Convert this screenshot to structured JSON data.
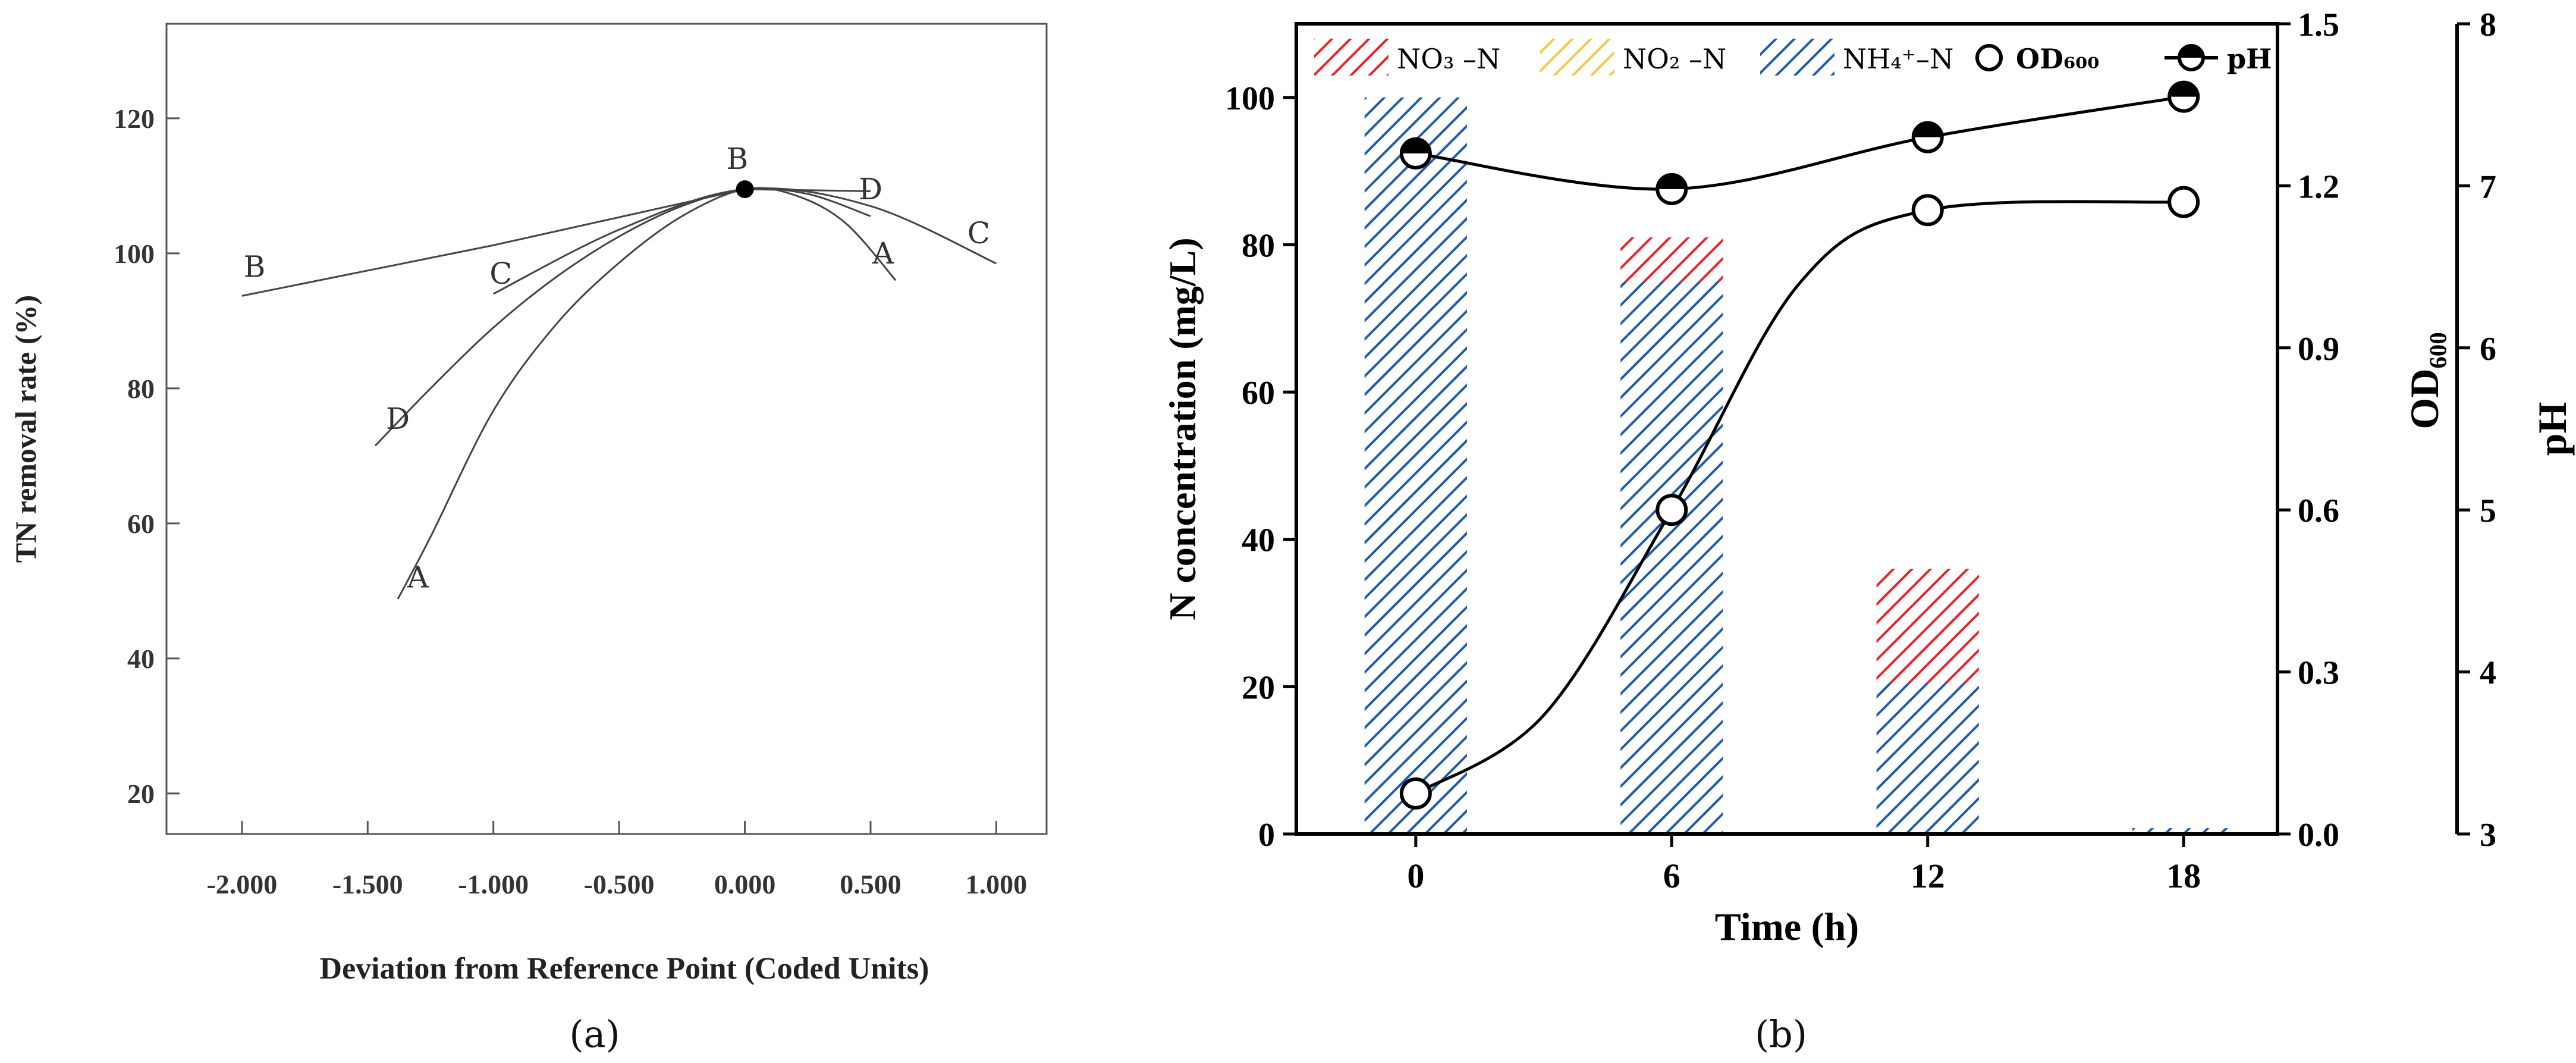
{
  "chart_data": [
    {
      "id": "a",
      "type": "line",
      "panel_label": "(a)",
      "title": "",
      "xlabel": "Deviation from Reference Point (Coded Units)",
      "ylabel": "TN removal rate (%)",
      "xlim": [
        -2.3,
        1.2
      ],
      "ylim": [
        14,
        134
      ],
      "xticks": [
        -2.0,
        -1.5,
        -1.0,
        -0.5,
        0.0,
        0.5,
        1.0
      ],
      "xtick_labels": [
        "-2.000",
        "-1.500",
        "-1.000",
        "-0.500",
        "0.000",
        "0.500",
        "1.000"
      ],
      "yticks": [
        20,
        40,
        60,
        80,
        100,
        120
      ],
      "ytick_labels": [
        "20",
        "40",
        "60",
        "80",
        "100",
        "120"
      ],
      "grid": false,
      "reference_point": {
        "x": 0.0,
        "y": 109.5
      },
      "series": [
        {
          "name": "A",
          "x": [
            -1.38,
            -1.25,
            -1.0,
            -0.75,
            -0.5,
            -0.25,
            0.0,
            0.2,
            0.4,
            0.6
          ],
          "y": [
            48.8,
            58,
            76.7,
            89.5,
            98.6,
            105.5,
            109.5,
            108.6,
            104.5,
            96.0
          ]
        },
        {
          "name": "B",
          "x": [
            -2.0,
            -1.0,
            0.0,
            0.5
          ],
          "y": [
            93.7,
            101.2,
            109.5,
            109.2
          ]
        },
        {
          "name": "C",
          "x": [
            -1.0,
            -0.5,
            0.0,
            0.5,
            1.0
          ],
          "y": [
            94.0,
            103.5,
            109.5,
            107.0,
            98.5
          ]
        },
        {
          "name": "D",
          "x": [
            -1.47,
            -1.25,
            -1.0,
            -0.75,
            -0.5,
            -0.25,
            0.0,
            0.25,
            0.5
          ],
          "y": [
            71.5,
            80,
            89,
            96.5,
            102.5,
            107,
            109.5,
            108.8,
            105.5
          ]
        }
      ],
      "curve_labels": [
        {
          "text": "B",
          "x": -1.95,
          "y": 96.5
        },
        {
          "text": "C",
          "x": -0.97,
          "y": 95.5
        },
        {
          "text": "D",
          "x": -1.38,
          "y": 74
        },
        {
          "text": "A",
          "x": -1.3,
          "y": 50.5
        },
        {
          "text": "B",
          "x": -0.03,
          "y": 112.5
        },
        {
          "text": "D",
          "x": 0.5,
          "y": 108
        },
        {
          "text": "A",
          "x": 0.55,
          "y": 98.5
        },
        {
          "text": "C",
          "x": 0.93,
          "y": 101.5
        }
      ]
    },
    {
      "id": "b",
      "type": "bar",
      "panel_label": "(b)",
      "title": "",
      "xlabel": "Time (h)",
      "ylabel": "N concentration (mg/L)",
      "categories": [
        "0",
        "6",
        "12",
        "18"
      ],
      "x": [
        0,
        6,
        12,
        18
      ],
      "xlim": [
        -2.8,
        20.2
      ],
      "ylim": [
        0,
        110
      ],
      "yticks": [
        0,
        20,
        40,
        60,
        80,
        100
      ],
      "bar_width_h": 2.4,
      "stacked": true,
      "series": [
        {
          "name": "NH₄⁺–N",
          "values": [
            100,
            75,
            20.5,
            0.8
          ],
          "color": "#1f5ca8",
          "axis": "left"
        },
        {
          "name": "NO₂ –N",
          "values": [
            0,
            0,
            0,
            0
          ],
          "color": "#f2c94c",
          "axis": "left"
        },
        {
          "name": "NO₃ –N",
          "values": [
            0,
            6,
            15.5,
            0
          ],
          "color": "#e8242a",
          "axis": "left"
        }
      ],
      "lines": [
        {
          "name": "OD₆₀₀",
          "axis": "right1",
          "marker": "open-circle",
          "x": [
            0,
            6,
            12,
            18
          ],
          "values": [
            0.075,
            0.6,
            1.155,
            1.17
          ]
        },
        {
          "name": "pH",
          "axis": "right2",
          "marker": "half-filled-circle",
          "x": [
            0,
            6,
            12,
            18
          ],
          "values": [
            7.2,
            6.98,
            7.3,
            7.55
          ]
        }
      ],
      "right_axis_1": {
        "label": "OD₆₀₀",
        "ylim": [
          0,
          1.5
        ],
        "ticks": [
          0.0,
          0.3,
          0.6,
          0.9,
          1.2,
          1.5
        ],
        "tick_labels": [
          "0.0",
          "0.3",
          "0.6",
          "0.9",
          "1.2",
          "1.5"
        ]
      },
      "right_axis_2": {
        "label": "pH",
        "ylim": [
          3,
          8
        ],
        "ticks": [
          3,
          4,
          5,
          6,
          7,
          8
        ],
        "tick_labels": [
          "3",
          "4",
          "5",
          "6",
          "7",
          "8"
        ]
      },
      "legend": {
        "placement": "top",
        "entries": [
          {
            "label": "NO₃ –N",
            "kind": "hatch",
            "color": "#e8242a"
          },
          {
            "label": "NO₂ –N",
            "kind": "hatch",
            "color": "#f2c94c"
          },
          {
            "label": "NH₄⁺–N",
            "kind": "hatch",
            "color": "#1f5ca8"
          },
          {
            "label": "OD₆₀₀",
            "kind": "open-circle",
            "color": "#000000"
          },
          {
            "label": "pH",
            "kind": "half-filled-circle",
            "color": "#000000"
          }
        ]
      }
    }
  ]
}
